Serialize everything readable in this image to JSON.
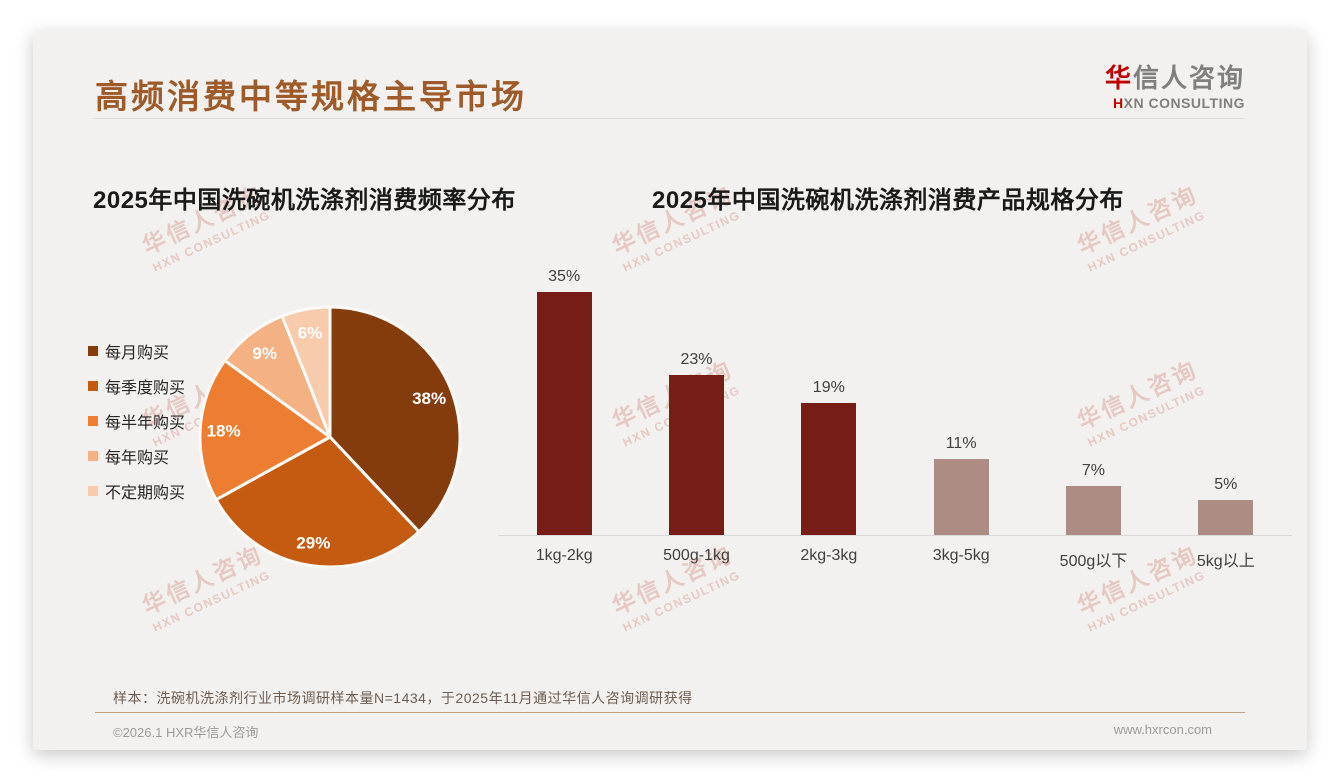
{
  "page": {
    "title": "高频消费中等规格主导市场",
    "logo": {
      "zh_accent": "华",
      "zh_rest": "信人咨询",
      "en_accent": "H",
      "en_rest": "XN CONSULTING"
    },
    "watermark": {
      "line1": "华信人咨询",
      "line2": "HXN CONSULTING"
    }
  },
  "chart_data": [
    {
      "type": "pie",
      "title": "2025年中国洗碗机洗涤剂消费频率分布",
      "labels": [
        "每月购买",
        "每季度购买",
        "每半年购买",
        "每年购买",
        "不定期购买"
      ],
      "values": [
        38,
        29,
        18,
        9,
        6
      ],
      "unit": "%",
      "colors": [
        "#843C0C",
        "#C55A11",
        "#ED7D31",
        "#F4B183",
        "#F8CBAD"
      ],
      "start_angle": "top-clockwise",
      "legend_position": "left",
      "label_color": "#FFFFFF"
    },
    {
      "type": "bar",
      "title": "2025年中国洗碗机洗涤剂消费产品规格分布",
      "categories": [
        "1kg-2kg",
        "500g-1kg",
        "2kg-3kg",
        "3kg-5kg",
        "500g以下",
        "5kg以上"
      ],
      "values": [
        35,
        23,
        19,
        11,
        7,
        5
      ],
      "unit": "%",
      "bar_colors": [
        "#771D17",
        "#771D17",
        "#771D17",
        "#AD8D83",
        "#AD8D83",
        "#AD8D83"
      ],
      "value_label_color": "#404040",
      "ylim": [
        0,
        38
      ],
      "grid": false,
      "baseline_color": "#D9D9D9"
    }
  ],
  "footer": {
    "note": "样本：洗碗机洗涤剂行业市场调研样本量N=1434，于2025年11月通过华信人咨询调研获得",
    "copyright": "©2026.1 HXR华信人咨询",
    "website": "www.hxrcon.com"
  }
}
